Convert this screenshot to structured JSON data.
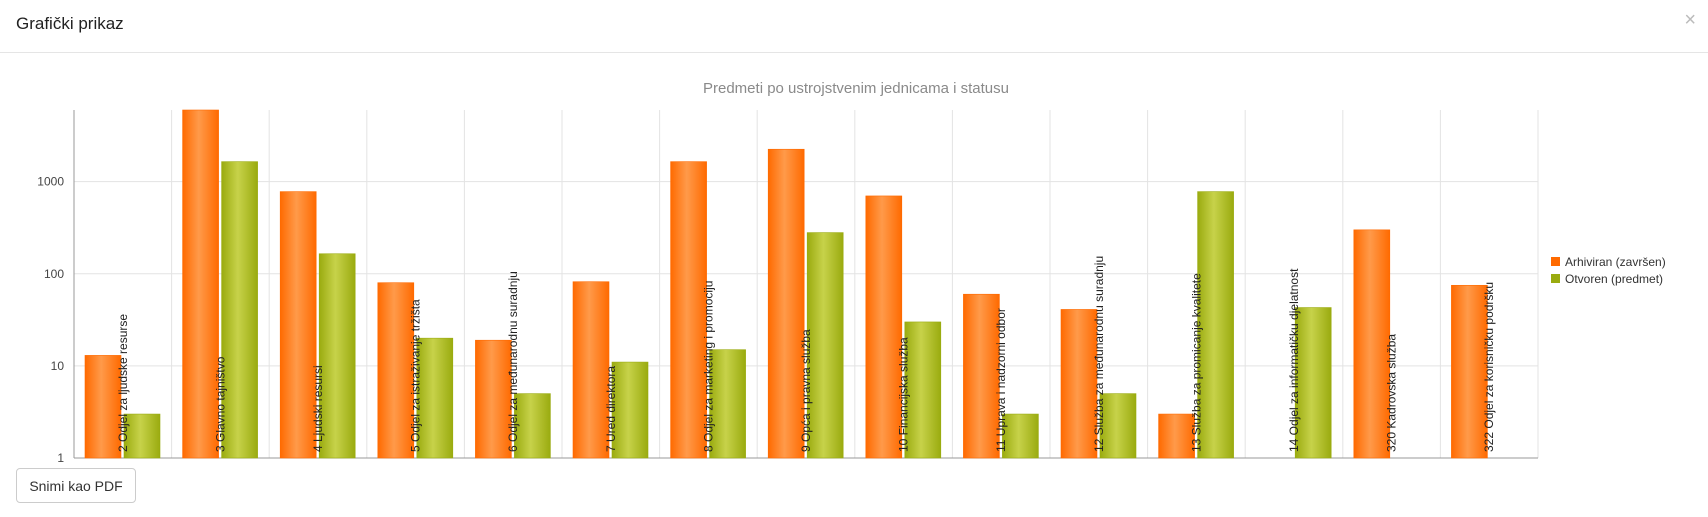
{
  "modal": {
    "title": "Grafički prikaz",
    "close_icon": "close-icon",
    "pdf_button_label": "Snimi kao PDF"
  },
  "chart_data": {
    "type": "bar",
    "title": "Predmeti po ustrojstvenim jednicama i statusu",
    "xlabel": "",
    "ylabel": "",
    "y_scale": "log",
    "ylim": [
      1,
      6000
    ],
    "yticks": [
      "1",
      "10",
      "100",
      "1000"
    ],
    "grid": true,
    "legend_position": "right",
    "categories": [
      "2 Odjel za ljudske resurse",
      "3 Glavno tajništvo",
      "4 Ljudski resursi",
      "5 Odjel za istraživanje tržišta",
      "6 Odjel za međunarodnu suradnju",
      "7 Ured direktora",
      "8 Odjel za marketing i promociju",
      "9 Opća i pravna služba",
      "10 Financijska služba",
      "11 Uprava i nadzorni odbor",
      "12 Služba za međunarodnu suradnju",
      "13 Služba za promicanje kvalitete",
      "14 Odjel za informatičku djelatnost",
      "320 Kadrovska služba",
      "322 Odjel za korisničku podršku"
    ],
    "series": [
      {
        "name": "Arhiviran (završen)",
        "color": "#ff6a00",
        "values": [
          13,
          6000,
          780,
          80,
          19,
          82,
          1650,
          2250,
          700,
          60,
          41,
          3,
          null,
          300,
          75
        ]
      },
      {
        "name": "Otvoren (predmet)",
        "color": "#9aab0f",
        "values": [
          3,
          1650,
          165,
          20,
          5,
          11,
          15,
          280,
          30,
          3,
          5,
          780,
          43,
          null,
          null
        ]
      }
    ]
  }
}
